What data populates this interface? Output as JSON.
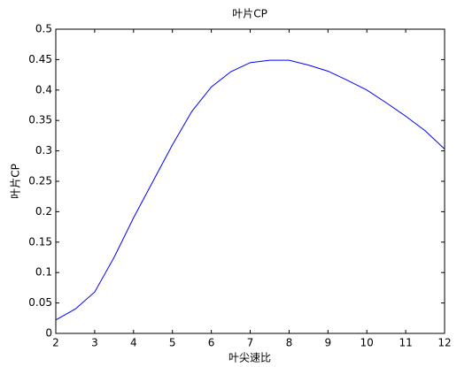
{
  "chart_data": {
    "type": "line",
    "title": "叶片CP",
    "x_label": "叶尖速比",
    "y_label": "叶片CP",
    "x": [
      2,
      2.5,
      3,
      3.5,
      4,
      4.5,
      5,
      5.5,
      6,
      6.5,
      7,
      7.5,
      8,
      8.5,
      9,
      9.5,
      10,
      10.5,
      11,
      11.5,
      12
    ],
    "series": [
      {
        "color": "#0000ff",
        "values": [
          0.022,
          0.04,
          0.068,
          0.125,
          0.19,
          0.25,
          0.31,
          0.365,
          0.405,
          0.43,
          0.445,
          0.449,
          0.449,
          0.441,
          0.431,
          0.416,
          0.4,
          0.379,
          0.357,
          0.333,
          0.303
        ]
      }
    ],
    "xlim": [
      2,
      12
    ],
    "xticks": [
      2,
      3,
      4,
      5,
      6,
      7,
      8,
      9,
      10,
      11,
      12
    ],
    "ylim": [
      0,
      0.5
    ],
    "yticks": [
      0,
      0.05,
      0.1,
      0.15,
      0.2,
      0.25,
      0.3,
      0.35,
      0.4,
      0.45,
      0.5
    ],
    "grid": false
  }
}
